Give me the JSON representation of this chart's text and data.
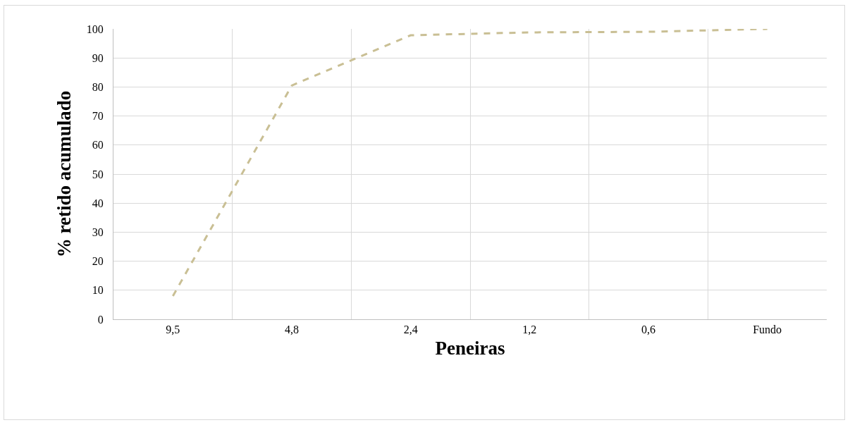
{
  "chart_data": {
    "type": "line",
    "xlabel": "Peneiras",
    "ylabel": "% retido acumulado",
    "categories": [
      "9,5",
      "4,8",
      "2,4",
      "1,2",
      "0,6",
      "Fundo"
    ],
    "series": [
      {
        "color": "#c9bf94",
        "values": [
          8,
          80.5,
          97.8,
          98.8,
          99,
          100
        ]
      }
    ],
    "ylim": [
      0,
      100
    ],
    "yticks": [
      0,
      10,
      20,
      30,
      40,
      50,
      60,
      70,
      80,
      90,
      100
    ],
    "grid": true,
    "legend": false,
    "marker": "none",
    "line_style": "dashed"
  }
}
